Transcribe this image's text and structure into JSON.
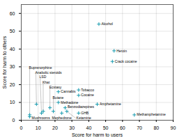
{
  "chart_data": {
    "type": "scatter",
    "xlabel": "Score for harm to users",
    "ylabel": "Score for harm to others",
    "xlim": [
      0,
      90
    ],
    "ylim": [
      0,
      65
    ],
    "xticks": [
      0,
      10,
      20,
      30,
      40,
      50,
      60,
      70,
      80,
      90
    ],
    "yticks": [
      0,
      10,
      20,
      30,
      40,
      50,
      60
    ],
    "grid": true,
    "color": "#1a9cb0",
    "marker": "plus",
    "annotations": [
      "Alcohol",
      "Heroin",
      "Crack cocaine",
      "Tobacco",
      "Cannabis",
      "Cocaine",
      "Amphetamine",
      "Methamphetamine",
      "Methadone",
      "Benzodiazepines",
      "Ketamine",
      "GHB",
      "Anabolic steroids",
      "Ecstasy",
      "Khat",
      "LSD",
      "Buprenorphine",
      "Mushrooms",
      "Butane",
      "Mephedrone"
    ],
    "x": [
      46,
      55,
      54,
      34,
      22,
      34,
      45,
      67,
      22,
      26,
      27,
      34,
      9,
      17,
      13,
      12,
      5,
      5,
      19,
      24
    ],
    "values": [
      54,
      39,
      33,
      17,
      16,
      14,
      9,
      3,
      10,
      7,
      5,
      4,
      9,
      7,
      5,
      4,
      3,
      2,
      5,
      4
    ]
  }
}
